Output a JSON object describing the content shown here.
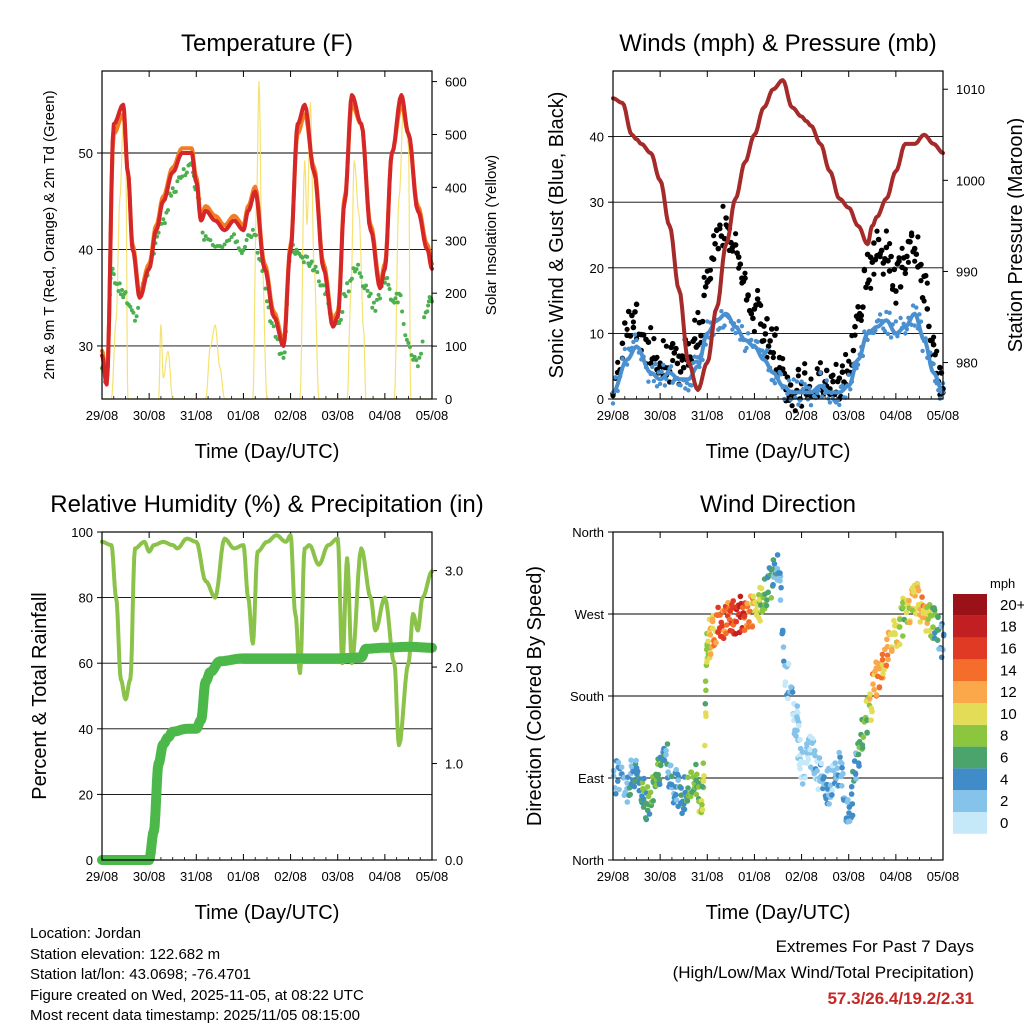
{
  "chart_data": [
    {
      "type": "line",
      "title": "Temperature (F)",
      "xlabel": "Time (Day/UTC)",
      "ylabel": "2m & 9m T (Red, Orange) & 2m Td (Green)",
      "ylabel_right": "Solar Insolation (Yellow)",
      "xticks": [
        "29/08",
        "30/08",
        "31/08",
        "01/08",
        "02/08",
        "03/08",
        "04/08",
        "05/08"
      ],
      "ylim": [
        24.5,
        58.5
      ],
      "yticks": [
        30,
        40,
        50
      ],
      "ylim_right": [
        0,
        620
      ],
      "yticks_right": [
        0,
        100,
        200,
        300,
        400,
        500,
        600
      ],
      "series": [
        {
          "name": "2m T",
          "color": "#d62728",
          "x": [
            0,
            0.1,
            0.25,
            0.45,
            0.55,
            0.65,
            0.8,
            1.0,
            1.15,
            1.3,
            1.5,
            1.7,
            1.9,
            2.0,
            2.1,
            2.2,
            2.4,
            2.6,
            2.8,
            3.0,
            3.1,
            3.25,
            3.45,
            3.65,
            3.85,
            4.0,
            4.15,
            4.3,
            4.5,
            4.7,
            4.9,
            5.0,
            5.15,
            5.3,
            5.5,
            5.7,
            5.9,
            6.0,
            6.15,
            6.35,
            6.5,
            6.7,
            6.9,
            7.0
          ],
          "values": [
            29,
            26,
            53,
            55,
            48,
            40,
            35,
            38,
            42,
            45,
            48,
            50,
            50,
            47,
            43,
            44,
            43,
            42,
            43,
            42,
            44,
            46,
            38,
            33,
            30,
            40,
            53,
            55,
            48,
            38,
            32,
            33,
            45,
            56,
            53,
            42,
            36,
            38,
            50,
            56,
            52,
            44,
            40,
            38
          ]
        },
        {
          "name": "9m T",
          "color": "#f47c20",
          "x": [
            0,
            0.1,
            0.25,
            0.45,
            0.55,
            0.65,
            0.8,
            1.0,
            1.15,
            1.3,
            1.5,
            1.7,
            1.9,
            2.0,
            2.1,
            2.2,
            2.4,
            2.6,
            2.8,
            3.0,
            3.1,
            3.25,
            3.45,
            3.65,
            3.85,
            4.0,
            4.15,
            4.3,
            4.5,
            4.7,
            4.9,
            5.0,
            5.15,
            5.3,
            5.5,
            5.7,
            5.9,
            6.0,
            6.15,
            6.35,
            6.5,
            6.7,
            6.9,
            7.0
          ],
          "values": [
            29.5,
            26.5,
            52,
            54,
            48,
            40.5,
            35.5,
            38.5,
            42.5,
            45.5,
            48.5,
            50.5,
            50.5,
            47.5,
            43.5,
            44.5,
            43.5,
            42.5,
            43.5,
            42.5,
            44.5,
            46.5,
            38.5,
            33.5,
            30.5,
            40.5,
            52,
            54,
            48.5,
            38.5,
            32.5,
            33.5,
            45.5,
            55,
            53,
            42.5,
            36.5,
            38.5,
            50,
            55,
            52,
            44.5,
            40.5,
            38.5
          ]
        },
        {
          "name": "2m Td",
          "color": "#4caf50",
          "x": [
            0,
            0.1,
            0.2,
            0.35,
            0.5,
            0.7,
            0.9,
            1.1,
            1.3,
            1.5,
            1.7,
            1.9,
            2.0,
            2.2,
            2.5,
            2.8,
            3.0,
            3.2,
            3.4,
            3.6,
            3.85,
            4.0,
            4.15,
            4.35,
            4.5,
            4.7,
            4.9,
            5.0,
            5.2,
            5.4,
            5.6,
            5.8,
            6.0,
            6.15,
            6.3,
            6.5,
            6.7,
            6.9,
            7.0
          ],
          "values": [
            28,
            26,
            38,
            36,
            35,
            33,
            37,
            40,
            43,
            46,
            48,
            49,
            46,
            41,
            40,
            41,
            40,
            42,
            38,
            32,
            29,
            40,
            40,
            39,
            38,
            36,
            33,
            32,
            36,
            38,
            36,
            34,
            37,
            35,
            35,
            30,
            28,
            34,
            35
          ]
        },
        {
          "name": "Solar Insolation",
          "color": "#f4df60",
          "axis": "right",
          "x": [
            0,
            0.2,
            0.3,
            0.38,
            0.45,
            0.5,
            0.55,
            0.7,
            1.0,
            1.2,
            1.25,
            1.3,
            1.4,
            1.5,
            2.0,
            2.2,
            2.3,
            2.4,
            2.5,
            2.6,
            2.9,
            3.2,
            3.28,
            3.33,
            3.4,
            3.5,
            4.0,
            4.2,
            4.3,
            4.35,
            4.42,
            4.5,
            4.6,
            5.0,
            5.2,
            5.28,
            5.35,
            5.45,
            5.55,
            5.6,
            6.0,
            6.2,
            6.3,
            6.4,
            6.5,
            6.55,
            7.0
          ],
          "values": [
            0,
            0,
            150,
            380,
            520,
            470,
            0,
            0,
            0,
            0,
            140,
            40,
            90,
            0,
            0,
            0,
            100,
            140,
            60,
            0,
            0,
            0,
            380,
            600,
            250,
            0,
            0,
            0,
            450,
            330,
            560,
            250,
            0,
            0,
            0,
            200,
            450,
            350,
            130,
            0,
            0,
            0,
            380,
            560,
            480,
            0,
            0
          ]
        }
      ]
    },
    {
      "type": "line",
      "title": "Winds (mph) & Pressure (mb)",
      "xlabel": "Time (Day/UTC)",
      "ylabel": "Sonic Wind & Gust (Blue, Black)",
      "ylabel_right": "Station Pressure (Maroon)",
      "xticks": [
        "29/08",
        "30/08",
        "31/08",
        "01/08",
        "02/08",
        "03/08",
        "04/08",
        "05/08"
      ],
      "ylim": [
        0,
        50
      ],
      "yticks": [
        0,
        10,
        20,
        30,
        40
      ],
      "ylim_right": [
        976,
        1012
      ],
      "yticks_right": [
        980,
        990,
        1000,
        1010
      ],
      "series": [
        {
          "name": "Sonic Wind",
          "color": "#4a90d0",
          "x": [
            0,
            0.3,
            0.5,
            0.8,
            1.0,
            1.2,
            1.4,
            1.6,
            1.8,
            2.0,
            2.2,
            2.4,
            2.6,
            2.8,
            3.0,
            3.2,
            3.4,
            3.6,
            3.8,
            4.0,
            4.2,
            4.4,
            4.6,
            4.8,
            5.0,
            5.2,
            5.4,
            5.6,
            5.8,
            6.0,
            6.2,
            6.4,
            6.6,
            6.8,
            7.0
          ],
          "values": [
            1,
            6,
            8,
            4,
            3,
            4,
            3,
            3,
            5,
            10,
            12,
            13,
            11,
            9,
            8,
            6,
            4,
            2,
            1,
            1,
            1,
            2,
            1,
            1,
            2,
            6,
            10,
            11,
            12,
            10,
            11,
            13,
            9,
            4,
            1
          ]
        },
        {
          "name": "Gust",
          "color": "#000000",
          "x": [
            0,
            0.3,
            0.5,
            0.8,
            1.0,
            1.2,
            1.4,
            1.6,
            1.8,
            2.0,
            2.2,
            2.4,
            2.6,
            2.8,
            3.0,
            3.2,
            3.4,
            3.6,
            3.8,
            4.0,
            4.2,
            4.4,
            4.6,
            4.8,
            5.0,
            5.2,
            5.4,
            5.6,
            5.8,
            6.0,
            6.2,
            6.4,
            6.6,
            6.8,
            7.0
          ],
          "values": [
            2,
            11,
            12,
            7,
            5,
            6,
            6,
            7,
            10,
            18,
            24,
            26,
            22,
            16,
            14,
            11,
            8,
            3,
            2,
            2,
            2,
            3,
            2,
            2,
            4,
            12,
            20,
            22,
            22,
            18,
            21,
            24,
            17,
            7,
            2
          ]
        },
        {
          "name": "Station Pressure",
          "color": "#a52a2a",
          "axis": "right",
          "x": [
            0,
            0.2,
            0.4,
            0.5,
            0.6,
            0.8,
            1.0,
            1.2,
            1.4,
            1.6,
            1.8,
            2.0,
            2.2,
            2.4,
            2.6,
            2.8,
            3.0,
            3.2,
            3.4,
            3.6,
            3.8,
            4.0,
            4.1,
            4.2,
            4.4,
            4.6,
            4.8,
            5.0,
            5.2,
            5.4,
            5.5,
            5.6,
            5.8,
            6.0,
            6.2,
            6.4,
            6.6,
            6.8,
            7.0
          ],
          "values": [
            1009,
            1008.5,
            1005,
            1004.5,
            1004,
            1003,
            1000,
            995,
            988,
            980,
            977,
            980,
            986,
            993,
            998,
            1002,
            1005,
            1008,
            1010,
            1011,
            1008,
            1007,
            1006.5,
            1006,
            1004,
            1001,
            998,
            997,
            995,
            993,
            995,
            996,
            998,
            1001,
            1004,
            1004,
            1005,
            1004,
            1003
          ]
        }
      ]
    },
    {
      "type": "line",
      "title": "Relative Humidity (%) & Precipitation (in)",
      "xlabel": "Time (Day/UTC)",
      "ylabel": "Percent & Total Rainfall",
      "xticks": [
        "29/08",
        "30/08",
        "31/08",
        "01/08",
        "02/08",
        "03/08",
        "04/08",
        "05/08"
      ],
      "ylim": [
        0,
        100
      ],
      "yticks": [
        0,
        20,
        40,
        60,
        80,
        100
      ],
      "ylim_right": [
        0,
        3.4
      ],
      "yticks_right": [
        "0.0",
        "1.0",
        "2.0",
        "3.0"
      ],
      "series": [
        {
          "name": "Relative Humidity",
          "color": "#8bc34a",
          "x": [
            0,
            0.2,
            0.3,
            0.4,
            0.5,
            0.6,
            0.7,
            0.9,
            1.0,
            1.1,
            1.3,
            1.5,
            1.6,
            1.8,
            2.0,
            2.2,
            2.4,
            2.6,
            2.8,
            3.0,
            3.1,
            3.2,
            3.3,
            3.5,
            3.7,
            3.9,
            4.0,
            4.1,
            4.2,
            4.3,
            4.4,
            4.6,
            4.8,
            5.0,
            5.1,
            5.2,
            5.3,
            5.5,
            5.7,
            5.8,
            6.0,
            6.2,
            6.3,
            6.5,
            6.6,
            6.7,
            6.8,
            7.0
          ],
          "values": [
            97,
            96,
            80,
            55,
            49,
            55,
            95,
            97,
            94,
            96,
            97,
            96,
            95,
            98,
            97,
            85,
            80,
            98,
            95,
            96,
            80,
            66,
            94,
            97,
            99,
            97,
            99,
            75,
            57,
            95,
            96,
            90,
            96,
            98,
            60,
            92,
            60,
            95,
            80,
            70,
            80,
            60,
            35,
            60,
            75,
            70,
            80,
            88
          ]
        },
        {
          "name": "Total Precipitation",
          "color": "#4db84a",
          "axis": "right",
          "x": [
            0,
            1.0,
            1.1,
            1.2,
            1.3,
            1.4,
            1.5,
            1.8,
            2.0,
            2.1,
            2.2,
            2.3,
            2.5,
            3.0,
            3.5,
            4.0,
            4.5,
            5.0,
            5.5,
            5.6,
            6.0,
            6.5,
            7.0
          ],
          "values": [
            0,
            0,
            0.3,
            1.0,
            1.2,
            1.27,
            1.33,
            1.36,
            1.36,
            1.45,
            1.85,
            1.95,
            2.06,
            2.09,
            2.09,
            2.09,
            2.09,
            2.09,
            2.1,
            2.19,
            2.2,
            2.21,
            2.2
          ]
        }
      ]
    },
    {
      "type": "scatter",
      "title": "Wind Direction",
      "xlabel": "Time (Day/UTC)",
      "ylabel": "Direction (Colored By Speed)",
      "xticks": [
        "29/08",
        "30/08",
        "31/08",
        "01/08",
        "02/08",
        "03/08",
        "04/08",
        "05/08"
      ],
      "ylim": [
        0,
        360
      ],
      "yticks": [
        "North",
        "East",
        "South",
        "West",
        "North"
      ],
      "legend_title": "mph",
      "legend_labels": [
        "0",
        "2",
        "4",
        "6",
        "8",
        "10",
        "12",
        "14",
        "16",
        "18",
        "20+"
      ],
      "legend_colors": [
        "#c6e9f9",
        "#86c3ea",
        "#3f8cc8",
        "#4ca46d",
        "#8cc63e",
        "#e2dc56",
        "#fba84a",
        "#f46d2b",
        "#e03a25",
        "#c21f22",
        "#9b1118"
      ],
      "series": [
        {
          "name": "Direction",
          "x": [
            0,
            0.3,
            0.5,
            0.7,
            0.9,
            1.1,
            1.3,
            1.5,
            1.7,
            1.9,
            2.0,
            2.1,
            2.3,
            2.5,
            2.7,
            2.9,
            3.1,
            3.3,
            3.5,
            3.7,
            3.9,
            4.0,
            4.2,
            4.4,
            4.6,
            4.8,
            5.0,
            5.2,
            5.4,
            5.6,
            5.8,
            6.0,
            6.2,
            6.4,
            6.6,
            6.8,
            7.0
          ],
          "values": [
            90,
            80,
            100,
            60,
            90,
            110,
            80,
            70,
            90,
            60,
            230,
            250,
            260,
            265,
            270,
            275,
            280,
            300,
            320,
            200,
            150,
            100,
            120,
            90,
            80,
            100,
            50,
            110,
            160,
            200,
            230,
            250,
            270,
            290,
            270,
            260,
            240
          ],
          "speeds": [
            2,
            3,
            4,
            6,
            7,
            4,
            3,
            5,
            7,
            8,
            8,
            12,
            14,
            15,
            17,
            12,
            9,
            6,
            3,
            2,
            1,
            1,
            1,
            2,
            2,
            3,
            3,
            5,
            9,
            13,
            12,
            10,
            8,
            11,
            12,
            6,
            4
          ]
        }
      ]
    }
  ],
  "info": {
    "location": "Location: Jordan",
    "elevation": "Station elevation: 122.682 m",
    "latlon": "Station lat/lon: 43.0698; -76.4701",
    "created": "Figure created on Wed, 2025-11-05, at 08:22 UTC",
    "recent": "Most recent data timestamp: 2025/11/05 08:15:00"
  },
  "extremes": {
    "title": "Extremes For Past 7 Days",
    "subtitle": "(High/Low/Max Wind/Total Precipitation)",
    "values": "57.3/26.4/19.2/2.31"
  }
}
